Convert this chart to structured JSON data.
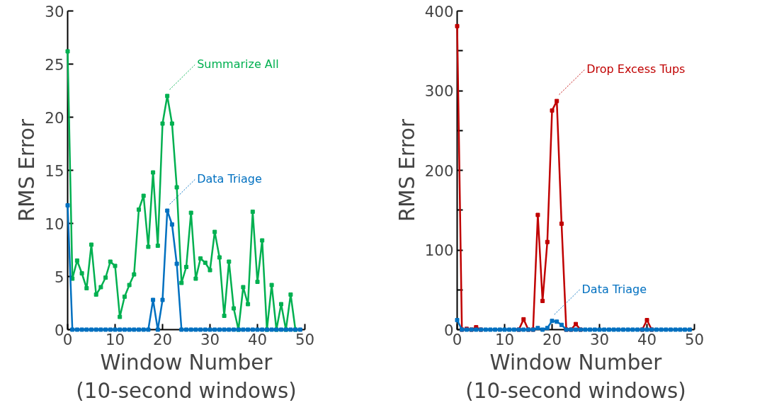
{
  "chart_data": [
    {
      "type": "line",
      "xlabel": "Window Number\n(10-second windows)",
      "ylabel": "RMS Error",
      "xlim": [
        0,
        50
      ],
      "ylim": [
        0,
        30
      ],
      "xticks": [
        0,
        10,
        20,
        30,
        40,
        50
      ],
      "yticks": [
        0,
        5,
        10,
        15,
        20,
        25,
        30
      ],
      "grid": false,
      "marker": "square",
      "line_style": "solid",
      "x": [
        0,
        1,
        2,
        3,
        4,
        5,
        6,
        7,
        8,
        9,
        10,
        11,
        12,
        13,
        14,
        15,
        16,
        17,
        18,
        19,
        20,
        21,
        22,
        23,
        24,
        25,
        26,
        27,
        28,
        29,
        30,
        31,
        32,
        33,
        34,
        35,
        36,
        37,
        38,
        39,
        40,
        41,
        42,
        43,
        44,
        45,
        46,
        47,
        48,
        49
      ],
      "series": [
        {
          "name": "Summarize All",
          "color": "#00b050",
          "values": [
            26.2,
            4.8,
            6.5,
            5.3,
            3.9,
            8.0,
            3.3,
            4.0,
            4.9,
            6.4,
            6.0,
            1.2,
            3.1,
            4.2,
            5.2,
            11.3,
            12.6,
            7.8,
            14.8,
            7.9,
            19.4,
            22.0,
            19.4,
            13.4,
            4.4,
            5.9,
            11.0,
            4.8,
            6.7,
            6.3,
            5.6,
            9.2,
            6.8,
            1.3,
            6.4,
            2.0,
            0,
            4.0,
            2.4,
            11.1,
            4.5,
            8.4,
            0,
            4.2,
            0,
            2.4,
            0,
            3.3,
            0,
            null
          ]
        },
        {
          "name": "Data Triage",
          "color": "#0070c0",
          "values": [
            11.7,
            0,
            0,
            0,
            0,
            0,
            0,
            0,
            0,
            0,
            0,
            0,
            0,
            0,
            0,
            0,
            0,
            0,
            2.8,
            0,
            2.8,
            11.2,
            9.9,
            6.2,
            0,
            0,
            0,
            0,
            0,
            0,
            0,
            0,
            0,
            0,
            0,
            0,
            0,
            0,
            0,
            0,
            0,
            0,
            0,
            0,
            0,
            0,
            0,
            0,
            0,
            0
          ]
        }
      ]
    },
    {
      "type": "line",
      "xlabel": "Window Number\n(10-second windows)",
      "ylabel": "RMS Error",
      "xlim": [
        0,
        50
      ],
      "ylim": [
        0,
        400
      ],
      "xticks": [
        0,
        10,
        20,
        30,
        40,
        50
      ],
      "yticks": [
        0,
        {
          "value": 50,
          "label": null
        },
        100,
        {
          "value": 150,
          "label": null
        },
        200,
        {
          "value": 250,
          "label": null
        },
        300,
        {
          "value": 350,
          "label": null
        },
        400
      ],
      "grid": false,
      "marker": "square",
      "line_style": "solid",
      "x": [
        0,
        1,
        2,
        3,
        4,
        5,
        6,
        7,
        8,
        9,
        10,
        11,
        12,
        13,
        14,
        15,
        16,
        17,
        18,
        19,
        20,
        21,
        22,
        23,
        24,
        25,
        26,
        27,
        28,
        29,
        30,
        31,
        32,
        33,
        34,
        35,
        36,
        37,
        38,
        39,
        40,
        41,
        42,
        43,
        44,
        45,
        46,
        47,
        48,
        49
      ],
      "series": [
        {
          "name": "Drop Excess Tups",
          "color": "#c00000",
          "values": [
            381,
            0,
            1,
            0,
            3,
            0,
            null,
            null,
            null,
            null,
            null,
            null,
            null,
            0,
            13,
            0,
            0,
            144,
            36,
            110,
            275,
            287,
            133,
            0,
            0,
            7,
            0,
            null,
            null,
            null,
            null,
            null,
            null,
            null,
            null,
            null,
            null,
            null,
            null,
            0,
            12,
            0,
            null,
            null,
            null,
            null,
            null,
            null,
            null,
            null
          ]
        },
        {
          "name": "Data Triage",
          "color": "#0070c0",
          "values": [
            12,
            0,
            0,
            0,
            0,
            0,
            0,
            0,
            0,
            0,
            0,
            0,
            0,
            0,
            0,
            0,
            0,
            2,
            0,
            2,
            11,
            10,
            6,
            0,
            0,
            0,
            0,
            0,
            0,
            0,
            0,
            0,
            0,
            0,
            0,
            0,
            0,
            0,
            0,
            0,
            0,
            0,
            0,
            0,
            0,
            0,
            0,
            0,
            0,
            0
          ]
        }
      ]
    }
  ]
}
